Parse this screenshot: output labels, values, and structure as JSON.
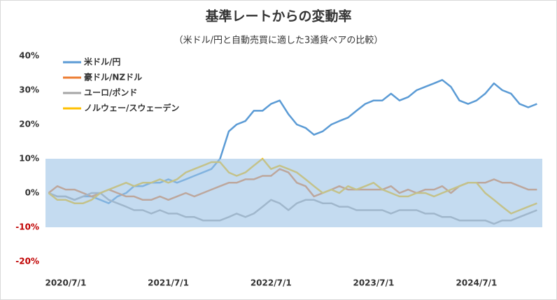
{
  "chart_data": {
    "type": "line",
    "title": "基準レートからの変動率",
    "subtitle": "（米ドル/円と自動売買に適した3通貨ペアの比較）",
    "x": [
      "2020/5/1",
      "2020/6/1",
      "2020/7/1",
      "2020/8/1",
      "2020/9/1",
      "2020/10/1",
      "2020/11/1",
      "2020/12/1",
      "2021/1/1",
      "2021/2/1",
      "2021/3/1",
      "2021/4/1",
      "2021/5/1",
      "2021/6/1",
      "2021/7/1",
      "2021/8/1",
      "2021/9/1",
      "2021/10/1",
      "2021/11/1",
      "2021/12/1",
      "2022/1/1",
      "2022/2/1",
      "2022/3/1",
      "2022/4/1",
      "2022/5/1",
      "2022/6/1",
      "2022/7/1",
      "2022/8/1",
      "2022/9/1",
      "2022/10/1",
      "2022/11/1",
      "2022/12/1",
      "2023/1/1",
      "2023/2/1",
      "2023/3/1",
      "2023/4/1",
      "2023/5/1",
      "2023/6/1",
      "2023/7/1",
      "2023/8/1",
      "2023/9/1",
      "2023/10/1",
      "2023/11/1",
      "2023/12/1",
      "2024/1/1",
      "2024/2/1",
      "2024/3/1",
      "2024/4/1",
      "2024/5/1",
      "2024/6/1",
      "2024/7/1",
      "2024/8/1",
      "2024/9/1",
      "2024/10/1",
      "2024/11/1",
      "2024/12/1",
      "2025/1/1",
      "2025/2/1"
    ],
    "series": [
      {
        "name": "米ドル/円",
        "color": "#5b9bd5",
        "values": [
          0,
          -1,
          -1,
          -2,
          -1,
          -1,
          -2,
          -3,
          -1,
          0,
          2,
          2,
          3,
          3,
          4,
          3,
          4,
          5,
          6,
          7,
          10,
          18,
          20,
          21,
          24,
          24,
          26,
          27,
          23,
          20,
          19,
          17,
          18,
          20,
          21,
          22,
          24,
          26,
          27,
          27,
          29,
          27,
          28,
          30,
          31,
          32,
          33,
          31,
          27,
          26,
          27,
          29,
          32,
          30,
          29,
          26,
          25,
          26
        ]
      },
      {
        "name": "豪ドル/NZドル",
        "color": "#ed7d31",
        "values": [
          0,
          2,
          1,
          1,
          0,
          -1,
          0,
          1,
          0,
          -1,
          -1,
          -2,
          -2,
          -1,
          -2,
          -1,
          0,
          -1,
          0,
          1,
          2,
          3,
          3,
          4,
          4,
          5,
          5,
          7,
          6,
          3,
          2,
          -1,
          0,
          1,
          2,
          1,
          1,
          1,
          1,
          1,
          2,
          0,
          1,
          0,
          1,
          1,
          2,
          0,
          2,
          3,
          3,
          3,
          4,
          3,
          3,
          2,
          1,
          1
        ]
      },
      {
        "name": "ユーロ/ポンド",
        "color": "#a5a5a5",
        "values": [
          0,
          -1,
          -1,
          -2,
          -1,
          0,
          0,
          -2,
          -3,
          -4,
          -5,
          -5,
          -6,
          -5,
          -6,
          -6,
          -7,
          -7,
          -8,
          -8,
          -8,
          -7,
          -6,
          -7,
          -6,
          -4,
          -2,
          -3,
          -5,
          -3,
          -2,
          -2,
          -3,
          -3,
          -4,
          -4,
          -5,
          -5,
          -5,
          -5,
          -6,
          -5,
          -5,
          -5,
          -6,
          -6,
          -7,
          -7,
          -8,
          -8,
          -8,
          -8,
          -9,
          -8,
          -8,
          -7,
          -6,
          -5
        ]
      },
      {
        "name": "ノルウェー/スウェーデン",
        "color": "#ffc000",
        "values": [
          0,
          -2,
          -2,
          -3,
          -3,
          -2,
          0,
          1,
          2,
          3,
          2,
          3,
          3,
          4,
          3,
          4,
          6,
          7,
          8,
          9,
          9,
          6,
          5,
          6,
          8,
          10,
          7,
          8,
          7,
          6,
          4,
          2,
          0,
          1,
          0,
          2,
          1,
          2,
          3,
          1,
          0,
          -1,
          -1,
          0,
          0,
          -1,
          0,
          1,
          2,
          3,
          3,
          0,
          -2,
          -4,
          -6,
          -5,
          -4,
          -3
        ]
      }
    ],
    "xlim": [
      "2020/4/20",
      "2025/2/20"
    ],
    "xticks": [
      "2020/7/1",
      "2021/7/1",
      "2022/7/1",
      "2023/7/1",
      "2024/7/1"
    ],
    "ylim": [
      -20,
      40
    ],
    "yticks": [
      {
        "value": -20,
        "label": "-20%"
      },
      {
        "value": -10,
        "label": "-10%"
      },
      {
        "value": 0,
        "label": "0%"
      },
      {
        "value": 10,
        "label": "10%"
      },
      {
        "value": 20,
        "label": "20%"
      },
      {
        "value": 30,
        "label": "30%"
      },
      {
        "value": 40,
        "label": "40%"
      }
    ],
    "negative_tick_color": "#c00000",
    "shaded_range": [
      -10,
      10
    ],
    "shaded_color": "#9dc3e6",
    "legend": "upper left"
  }
}
